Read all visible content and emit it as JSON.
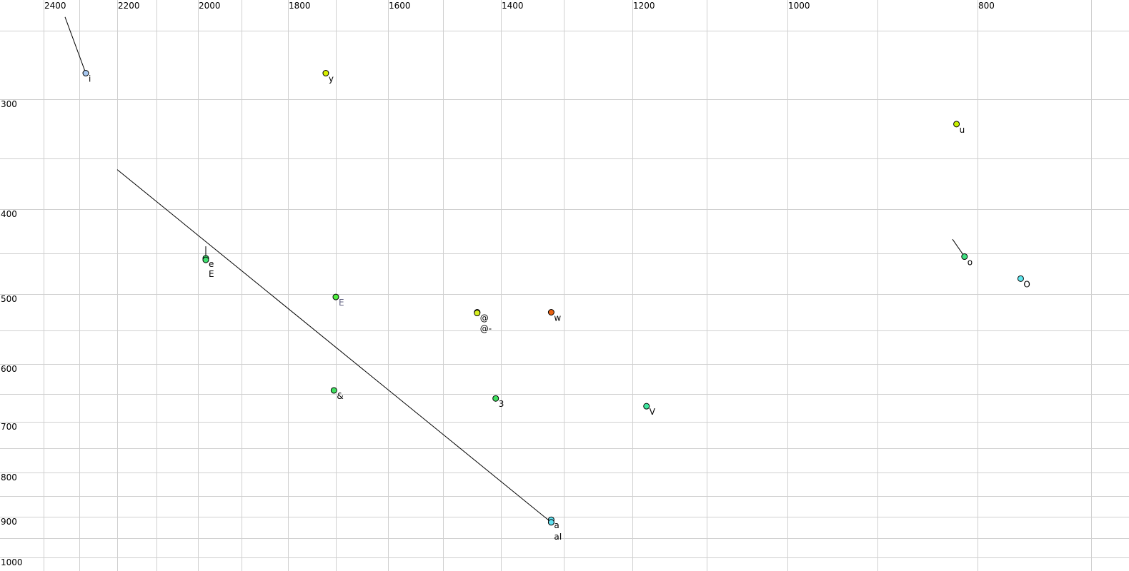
{
  "chart_data": {
    "type": "scatter",
    "title": "",
    "xlabel": "",
    "ylabel": "",
    "x_axis": {
      "reversed": true,
      "position": "top",
      "scale": "nonlinear (auditory)",
      "range": [
        2450,
        680
      ],
      "gridlines": [
        2400,
        2300,
        2200,
        2100,
        2000,
        1900,
        1800,
        1700,
        1600,
        1500,
        1400,
        1300,
        1200,
        1100,
        1000,
        900,
        800,
        700
      ],
      "tick_labels": [
        "2400",
        "2200",
        "2000",
        "1800",
        "1600",
        "1400",
        "1200",
        "1000",
        "800"
      ]
    },
    "y_axis": {
      "reversed": true,
      "position": "left",
      "scale": "nonlinear (auditory)",
      "range": [
        225,
        1020
      ],
      "gridlines": [
        250,
        300,
        350,
        400,
        450,
        500,
        550,
        600,
        650,
        700,
        750,
        800,
        850,
        900,
        950,
        1000
      ],
      "tick_labels": [
        "300",
        "400",
        "500",
        "600",
        "700",
        "800",
        "900",
        "1000"
      ]
    },
    "grid": true,
    "legend": "none",
    "points": [
      {
        "label": "i",
        "x": 2283,
        "y": 281,
        "color": "#a8c8f0",
        "label_color": "#000000",
        "trail_from": {
          "x": 2340,
          "y": 240
        }
      },
      {
        "label": "y",
        "x": 1721,
        "y": 281,
        "color": "#d8f000",
        "label_color": "#000000"
      },
      {
        "label": "u",
        "x": 821,
        "y": 321,
        "color": "#c8f000",
        "label_color": "#000000"
      },
      {
        "label": "e",
        "x": 1982,
        "y": 456,
        "color": "#40e070",
        "label_color": "#000000",
        "trail_from": {
          "x": 1982,
          "y": 442
        }
      },
      {
        "label": "E",
        "x": 1982,
        "y": 458,
        "color": "#40e070",
        "label_color": "#000000",
        "label_dy": 10
      },
      {
        "label": "E",
        "x": 1700,
        "y": 504,
        "color": "#50f040",
        "label_color": "#606080"
      },
      {
        "label": "@",
        "x": 1441,
        "y": 525,
        "color": "#d8f020",
        "label_color": "#000000"
      },
      {
        "label": "@-",
        "x": 1441,
        "y": 526,
        "color": "#d8f020",
        "label_color": "#000000",
        "label_dy": 10
      },
      {
        "label": "w",
        "x": 1320,
        "y": 525,
        "color": "#e86010",
        "label_color": "#000000"
      },
      {
        "label": "&",
        "x": 1704,
        "y": 644,
        "color": "#40e060",
        "label_color": "#000000"
      },
      {
        "label": "3",
        "x": 1409,
        "y": 658,
        "color": "#40e060",
        "label_color": "#000000"
      },
      {
        "label": "V",
        "x": 1181,
        "y": 672,
        "color": "#40e8a0",
        "label_color": "#000000"
      },
      {
        "label": "a",
        "x": 1320,
        "y": 907,
        "color": "#60e0f0",
        "label_color": "#000000"
      },
      {
        "label": "aI",
        "x": 1320,
        "y": 913,
        "color": "#60e0f0",
        "label_color": "#000000",
        "trail_from": {
          "x": 2200,
          "y": 361
        }
      },
      {
        "label": "o",
        "x": 813,
        "y": 454,
        "color": "#40e080",
        "label_color": "#000000",
        "trail_from": {
          "x": 825,
          "y": 434
        }
      },
      {
        "label": "O",
        "x": 762,
        "y": 481,
        "color": "#60e8f0",
        "label_color": "#000000"
      }
    ]
  }
}
